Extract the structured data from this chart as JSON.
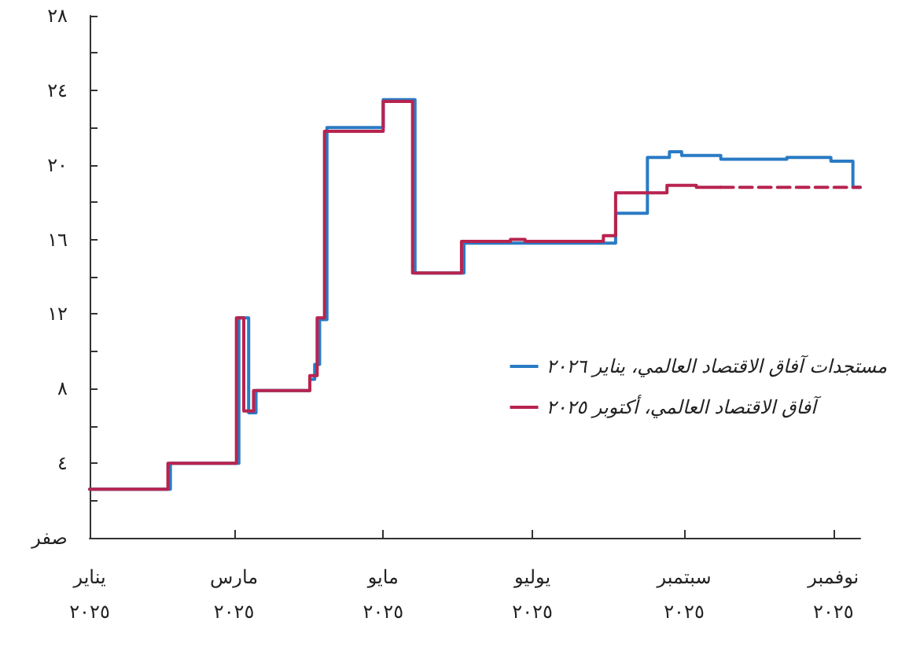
{
  "chart_data": {
    "type": "step",
    "xlim": [
      "--01-01",
      "--11-12"
    ],
    "xticks": [
      {
        "value": "--01-01",
        "label": "يناير\n٢٠٢٥"
      },
      {
        "value": "--03-01",
        "label": "مارس\n٢٠٢٥"
      },
      {
        "value": "--05-01",
        "label": "مايو\n٢٠٢٥"
      },
      {
        "value": "--07-01",
        "label": "يوليو\n٢٠٢٥"
      },
      {
        "value": "--09-01",
        "label": "سبتمبر\n٢٠٢٥"
      },
      {
        "value": "--11-01",
        "label": "نوفمبر\n٢٠٢٥"
      }
    ],
    "ylim": [
      0,
      28
    ],
    "yticks": [
      {
        "value": 0,
        "label": "صفر"
      },
      {
        "value": 2,
        "label": null
      },
      {
        "value": 4,
        "label": "٤"
      },
      {
        "value": 6,
        "label": null
      },
      {
        "value": 8,
        "label": "٨"
      },
      {
        "value": 10,
        "label": null
      },
      {
        "value": 12,
        "label": "١٢"
      },
      {
        "value": 14,
        "label": null
      },
      {
        "value": 16,
        "label": "١٦"
      },
      {
        "value": 18,
        "label": null
      },
      {
        "value": 20,
        "label": "٢٠"
      },
      {
        "value": 22,
        "label": null
      },
      {
        "value": 24,
        "label": "٢٤"
      },
      {
        "value": 26,
        "label": null
      },
      {
        "value": 28,
        "label": "٢٨"
      }
    ],
    "grid": false,
    "legend": "right",
    "marker": "none",
    "series": [
      {
        "name": "مستجدات آفاق الاقتصاد العالمي، يناير ٢٠٢٦",
        "color": "#2a7bc4",
        "x": [
          "--01-01",
          "--02-03",
          "--03-03",
          "--03-07",
          "--03-10",
          "--04-01",
          "--04-03",
          "--04-05",
          "--04-08",
          "--05-01",
          "--05-14",
          "--06-03",
          "--08-04",
          "--08-17",
          "--08-26",
          "--08-31",
          "--09-07",
          "--09-16",
          "--10-13",
          "--10-31",
          "--11-09",
          "--11-12"
        ],
        "values": [
          2.6,
          4.0,
          11.8,
          6.7,
          7.9,
          8.5,
          9.3,
          11.7,
          22.0,
          23.5,
          14.2,
          15.8,
          17.4,
          20.4,
          20.7,
          20.5,
          20.5,
          20.3,
          20.4,
          20.2,
          18.8,
          18.8
        ]
      },
      {
        "name": "آفاق الاقتصاد العالمي، أكتوبر ٢٠٢٥",
        "color": "#b8244f",
        "x": [
          "--01-01",
          "--02-02",
          "--03-02",
          "--03-05",
          "--03-09",
          "--04-01",
          "--04-04",
          "--04-07",
          "--05-01",
          "--05-13",
          "--06-02",
          "--06-22",
          "--06-28",
          "--07-30",
          "--08-04",
          "--08-25",
          "--09-06",
          "--09-16"
        ],
        "values": [
          2.6,
          4.0,
          11.8,
          6.8,
          7.9,
          8.7,
          11.8,
          21.8,
          23.4,
          14.2,
          15.9,
          16.0,
          15.9,
          16.2,
          18.5,
          18.9,
          18.8,
          18.8
        ]
      },
      {
        "color": "#b8244f",
        "line_style": "dashed",
        "x": [
          "--09-16",
          "--11-12"
        ],
        "values": [
          18.8,
          18.8
        ]
      }
    ]
  }
}
